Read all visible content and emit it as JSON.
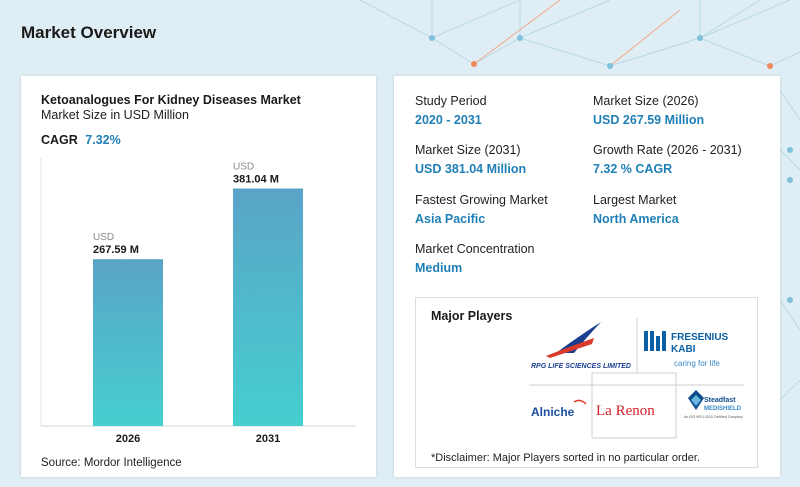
{
  "page": {
    "title": "Market Overview"
  },
  "chart": {
    "title": "Ketoanalogues For Kidney Diseases Market",
    "subtitle": "Market Size in USD Million",
    "cagr_label": "CAGR",
    "cagr_value": "7.32%",
    "source": "Source: Mordor Intelligence"
  },
  "chart_data": {
    "type": "bar",
    "title": "Ketoanalogues For Kidney Diseases Market",
    "subtitle": "Market Size in USD Million",
    "categories": [
      "2026",
      "2031"
    ],
    "values": [
      267.59,
      381.04
    ],
    "value_labels": [
      "267.59 M",
      "381.04 M"
    ],
    "value_prefix": "USD",
    "ylim": [
      0,
      430
    ],
    "grid": false,
    "colors": [
      "#5aa4c8",
      "#45cfcf"
    ]
  },
  "stats": [
    {
      "label": "Study Period",
      "value": "2020 - 2031"
    },
    {
      "label": "Market Size (2026)",
      "value": "USD 267.59 Million"
    },
    {
      "label": "Market Size (2031)",
      "value": "USD 381.04 Million"
    },
    {
      "label": "Growth Rate (2026 - 2031)",
      "value": "7.32 % CAGR"
    },
    {
      "label": "Fastest Growing Market",
      "value": "Asia Pacific"
    },
    {
      "label": "Largest Market",
      "value": "North America"
    },
    {
      "label": "Market Concentration",
      "value": "Medium"
    }
  ],
  "players": {
    "title": "Major Players",
    "disclaimer": "*Disclaimer: Major Players sorted in no particular order.",
    "logos": [
      {
        "name": "RPG LIFE SCIENCES LIMITED"
      },
      {
        "name": "FRESENIUS KABI",
        "tagline": "caring for life"
      },
      {
        "name": "Alniche"
      },
      {
        "name": "La Renon"
      },
      {
        "name": "Steadfast MEDISHIELD"
      }
    ]
  }
}
